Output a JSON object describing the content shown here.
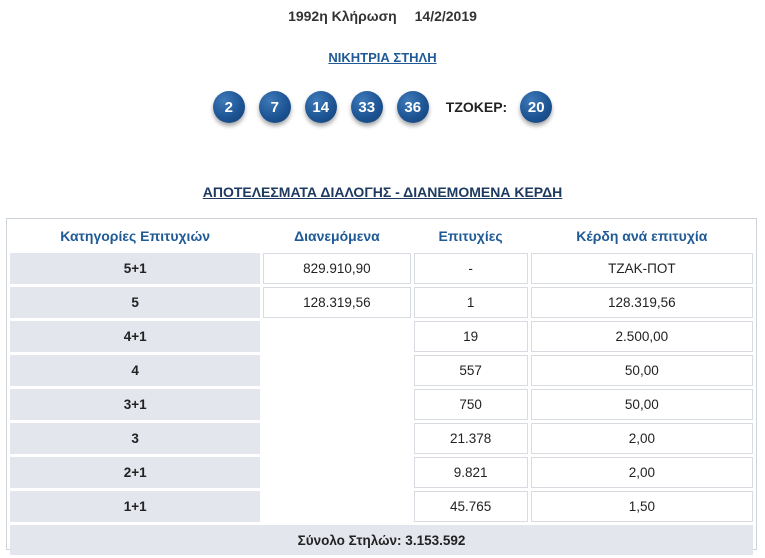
{
  "draw": {
    "number_label": "1992η Κλήρωση",
    "date": "14/2/2019"
  },
  "winning_column_link": "ΝΙΚΗΤΡΙΑ ΣΤΗΛΗ",
  "numbers": [
    "2",
    "7",
    "14",
    "33",
    "36"
  ],
  "joker": {
    "label": "ΤΖΟΚΕΡ:",
    "value": "20"
  },
  "results_title": "ΑΠΟΤΕΛΕΣΜΑΤΑ ΔΙΑΛΟΓΗΣ - ΔΙΑΝΕΜΟΜΕΝΑ ΚΕΡΔΗ",
  "table": {
    "headers": [
      "Κατηγορίες Επιτυχιών",
      "Διανεμόμενα",
      "Επιτυχίες",
      "Κέρδη ανά επιτυχία"
    ],
    "rows": [
      {
        "category": "5+1",
        "distributed": "829.910,90",
        "winners": "-",
        "prize": "ΤΖΑΚ-ΠΟΤ"
      },
      {
        "category": "5",
        "distributed": "128.319,56",
        "winners": "1",
        "prize": "128.319,56"
      },
      {
        "category": "4+1",
        "distributed": "",
        "winners": "19",
        "prize": "2.500,00"
      },
      {
        "category": "4",
        "distributed": "",
        "winners": "557",
        "prize": "50,00"
      },
      {
        "category": "3+1",
        "distributed": "",
        "winners": "750",
        "prize": "50,00"
      },
      {
        "category": "3",
        "distributed": "",
        "winners": "21.378",
        "prize": "2,00"
      },
      {
        "category": "2+1",
        "distributed": "",
        "winners": "9.821",
        "prize": "2,00"
      },
      {
        "category": "1+1",
        "distributed": "",
        "winners": "45.765",
        "prize": "1,50"
      }
    ],
    "total": "Σύνολο Στηλών: 3.153.592"
  }
}
